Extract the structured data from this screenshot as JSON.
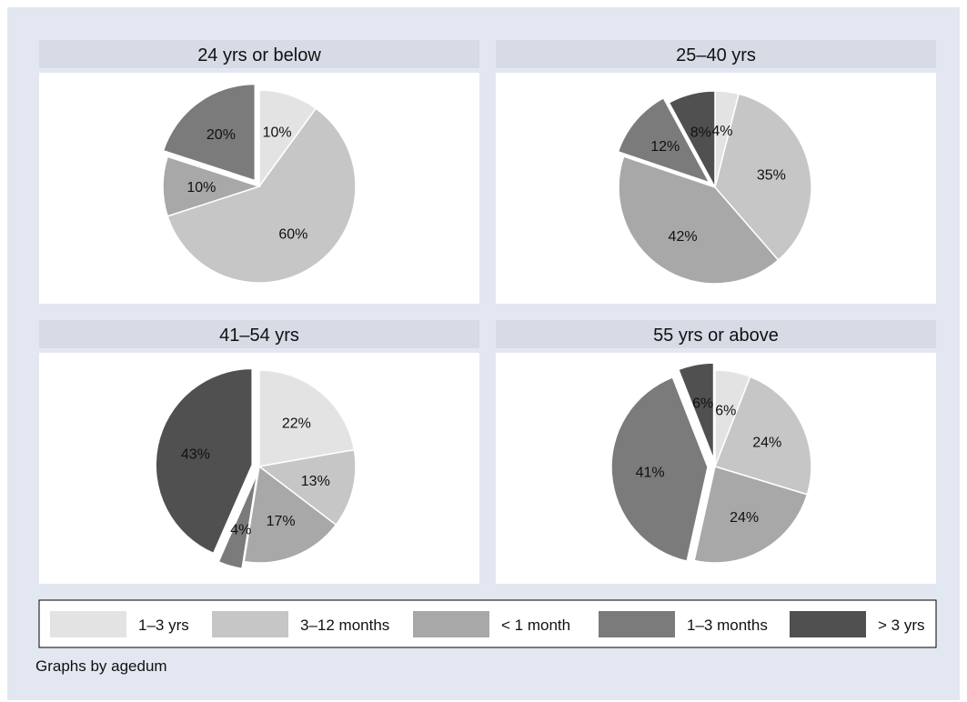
{
  "chart_data": [
    {
      "type": "pie",
      "title": "24 yrs or below",
      "slices": [
        {
          "category": "1–3 yrs",
          "value": 10,
          "label": "10%",
          "exploded": false
        },
        {
          "category": "3–12 months",
          "value": 60,
          "label": "60%",
          "exploded": false
        },
        {
          "category": "< 1 month",
          "value": 10,
          "label": "10%",
          "exploded": false
        },
        {
          "category": "1–3 months",
          "value": 20,
          "label": "20%",
          "exploded": true
        },
        {
          "category": "> 3 yrs",
          "value": 0,
          "label": "",
          "exploded": false
        }
      ]
    },
    {
      "type": "pie",
      "title": "25–40 yrs",
      "slices": [
        {
          "category": "1–3 yrs",
          "value": 4,
          "label": "4%",
          "exploded": false
        },
        {
          "category": "3–12 months",
          "value": 35,
          "label": "35%",
          "exploded": false
        },
        {
          "category": "< 1 month",
          "value": 42,
          "label": "42%",
          "exploded": false
        },
        {
          "category": "1–3 months",
          "value": 12,
          "label": "12%",
          "exploded": true
        },
        {
          "category": "> 3 yrs",
          "value": 8,
          "label": "8%",
          "exploded": false
        }
      ]
    },
    {
      "type": "pie",
      "title": "41–54 yrs",
      "slices": [
        {
          "category": "1–3 yrs",
          "value": 22,
          "label": "22%",
          "exploded": false
        },
        {
          "category": "3–12 months",
          "value": 13,
          "label": "13%",
          "exploded": false
        },
        {
          "category": "< 1 month",
          "value": 17,
          "label": "17%",
          "exploded": false
        },
        {
          "category": "1–3 months",
          "value": 4,
          "label": "4%",
          "exploded": true
        },
        {
          "category": "> 3 yrs",
          "value": 43,
          "label": "43%",
          "exploded": true
        }
      ]
    },
    {
      "type": "pie",
      "title": "55 yrs or above",
      "slices": [
        {
          "category": "1–3 yrs",
          "value": 6,
          "label": "6%",
          "exploded": false
        },
        {
          "category": "3–12 months",
          "value": 24,
          "label": "24%",
          "exploded": false
        },
        {
          "category": "< 1 month",
          "value": 24,
          "label": "24%",
          "exploded": false
        },
        {
          "category": "1–3 months",
          "value": 41,
          "label": "41%",
          "exploded": true
        },
        {
          "category": "> 3 yrs",
          "value": 6,
          "label": "6%",
          "exploded": true
        }
      ]
    }
  ],
  "legend": [
    {
      "label": "1–3 yrs",
      "color": "#e3e3e3"
    },
    {
      "label": "3–12 months",
      "color": "#c6c6c6"
    },
    {
      "label": "< 1 month",
      "color": "#a8a8a8"
    },
    {
      "label": "1–3 months",
      "color": "#7b7b7b"
    },
    {
      "label": "> 3 yrs",
      "color": "#505050"
    }
  ],
  "note": "Graphs by agedum",
  "colors": {
    "background": "#e2e7f1",
    "panel": "#ffffff",
    "title_strip": "#d6dbe6",
    "slice_border": "#ffffff"
  }
}
